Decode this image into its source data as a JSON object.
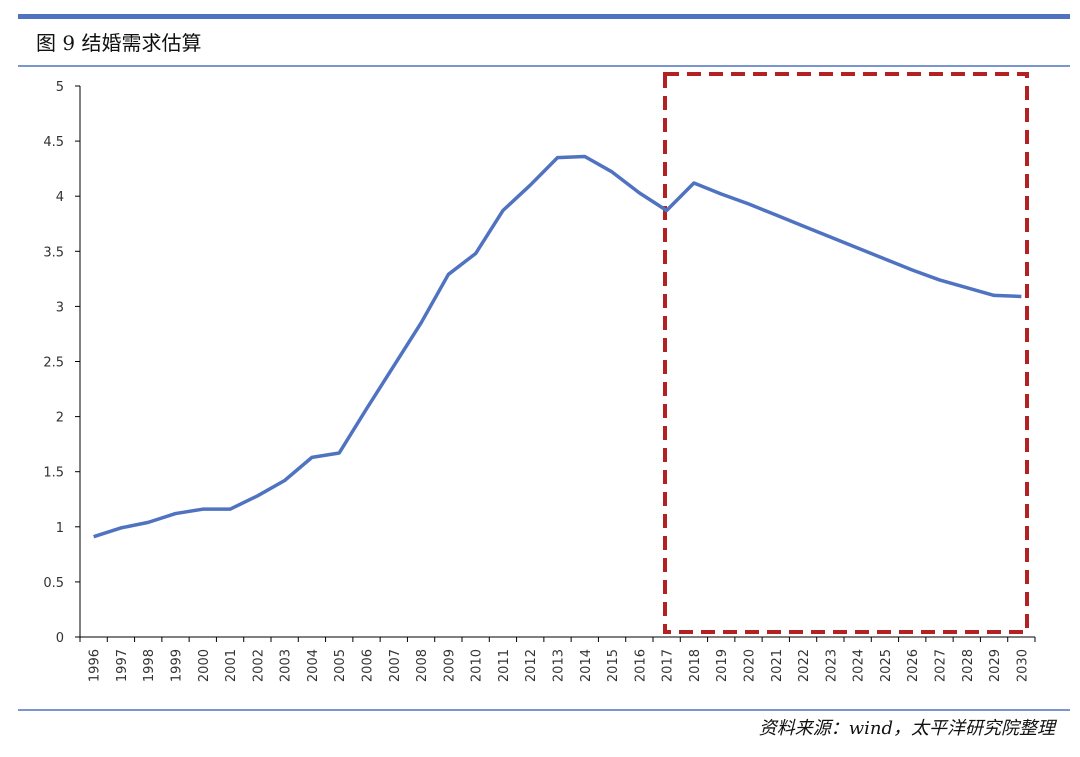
{
  "chart_data": {
    "type": "line",
    "title": "图 9   结婚需求估算",
    "source": "资料来源：wind，太平洋研究院整理",
    "categories": [
      "1996",
      "1997",
      "1998",
      "1999",
      "2000",
      "2001",
      "2002",
      "2003",
      "2004",
      "2005",
      "2006",
      "2007",
      "2008",
      "2009",
      "2010",
      "2011",
      "2012",
      "2013",
      "2014",
      "2015",
      "2016",
      "2017",
      "2018",
      "2019",
      "2020",
      "2021",
      "2022",
      "2023",
      "2024",
      "2025",
      "2026",
      "2027",
      "2028",
      "2029",
      "2030"
    ],
    "series": [
      {
        "color": "#4f73c1",
        "values": [
          0.91,
          0.99,
          1.04,
          1.12,
          1.16,
          1.16,
          1.28,
          1.42,
          1.63,
          1.67,
          2.07,
          2.46,
          2.85,
          3.29,
          3.48,
          3.87,
          4.1,
          4.35,
          4.36,
          4.22,
          4.03,
          3.87,
          4.12,
          4.02,
          3.93,
          3.83,
          3.73,
          3.63,
          3.53,
          3.43,
          3.33,
          3.24,
          3.17,
          3.1,
          3.09
        ]
      }
    ],
    "ylim": [
      0,
      5
    ],
    "yticks": [
      0,
      0.5,
      1,
      1.5,
      2,
      2.5,
      3,
      3.5,
      4,
      4.5,
      5
    ]
  }
}
